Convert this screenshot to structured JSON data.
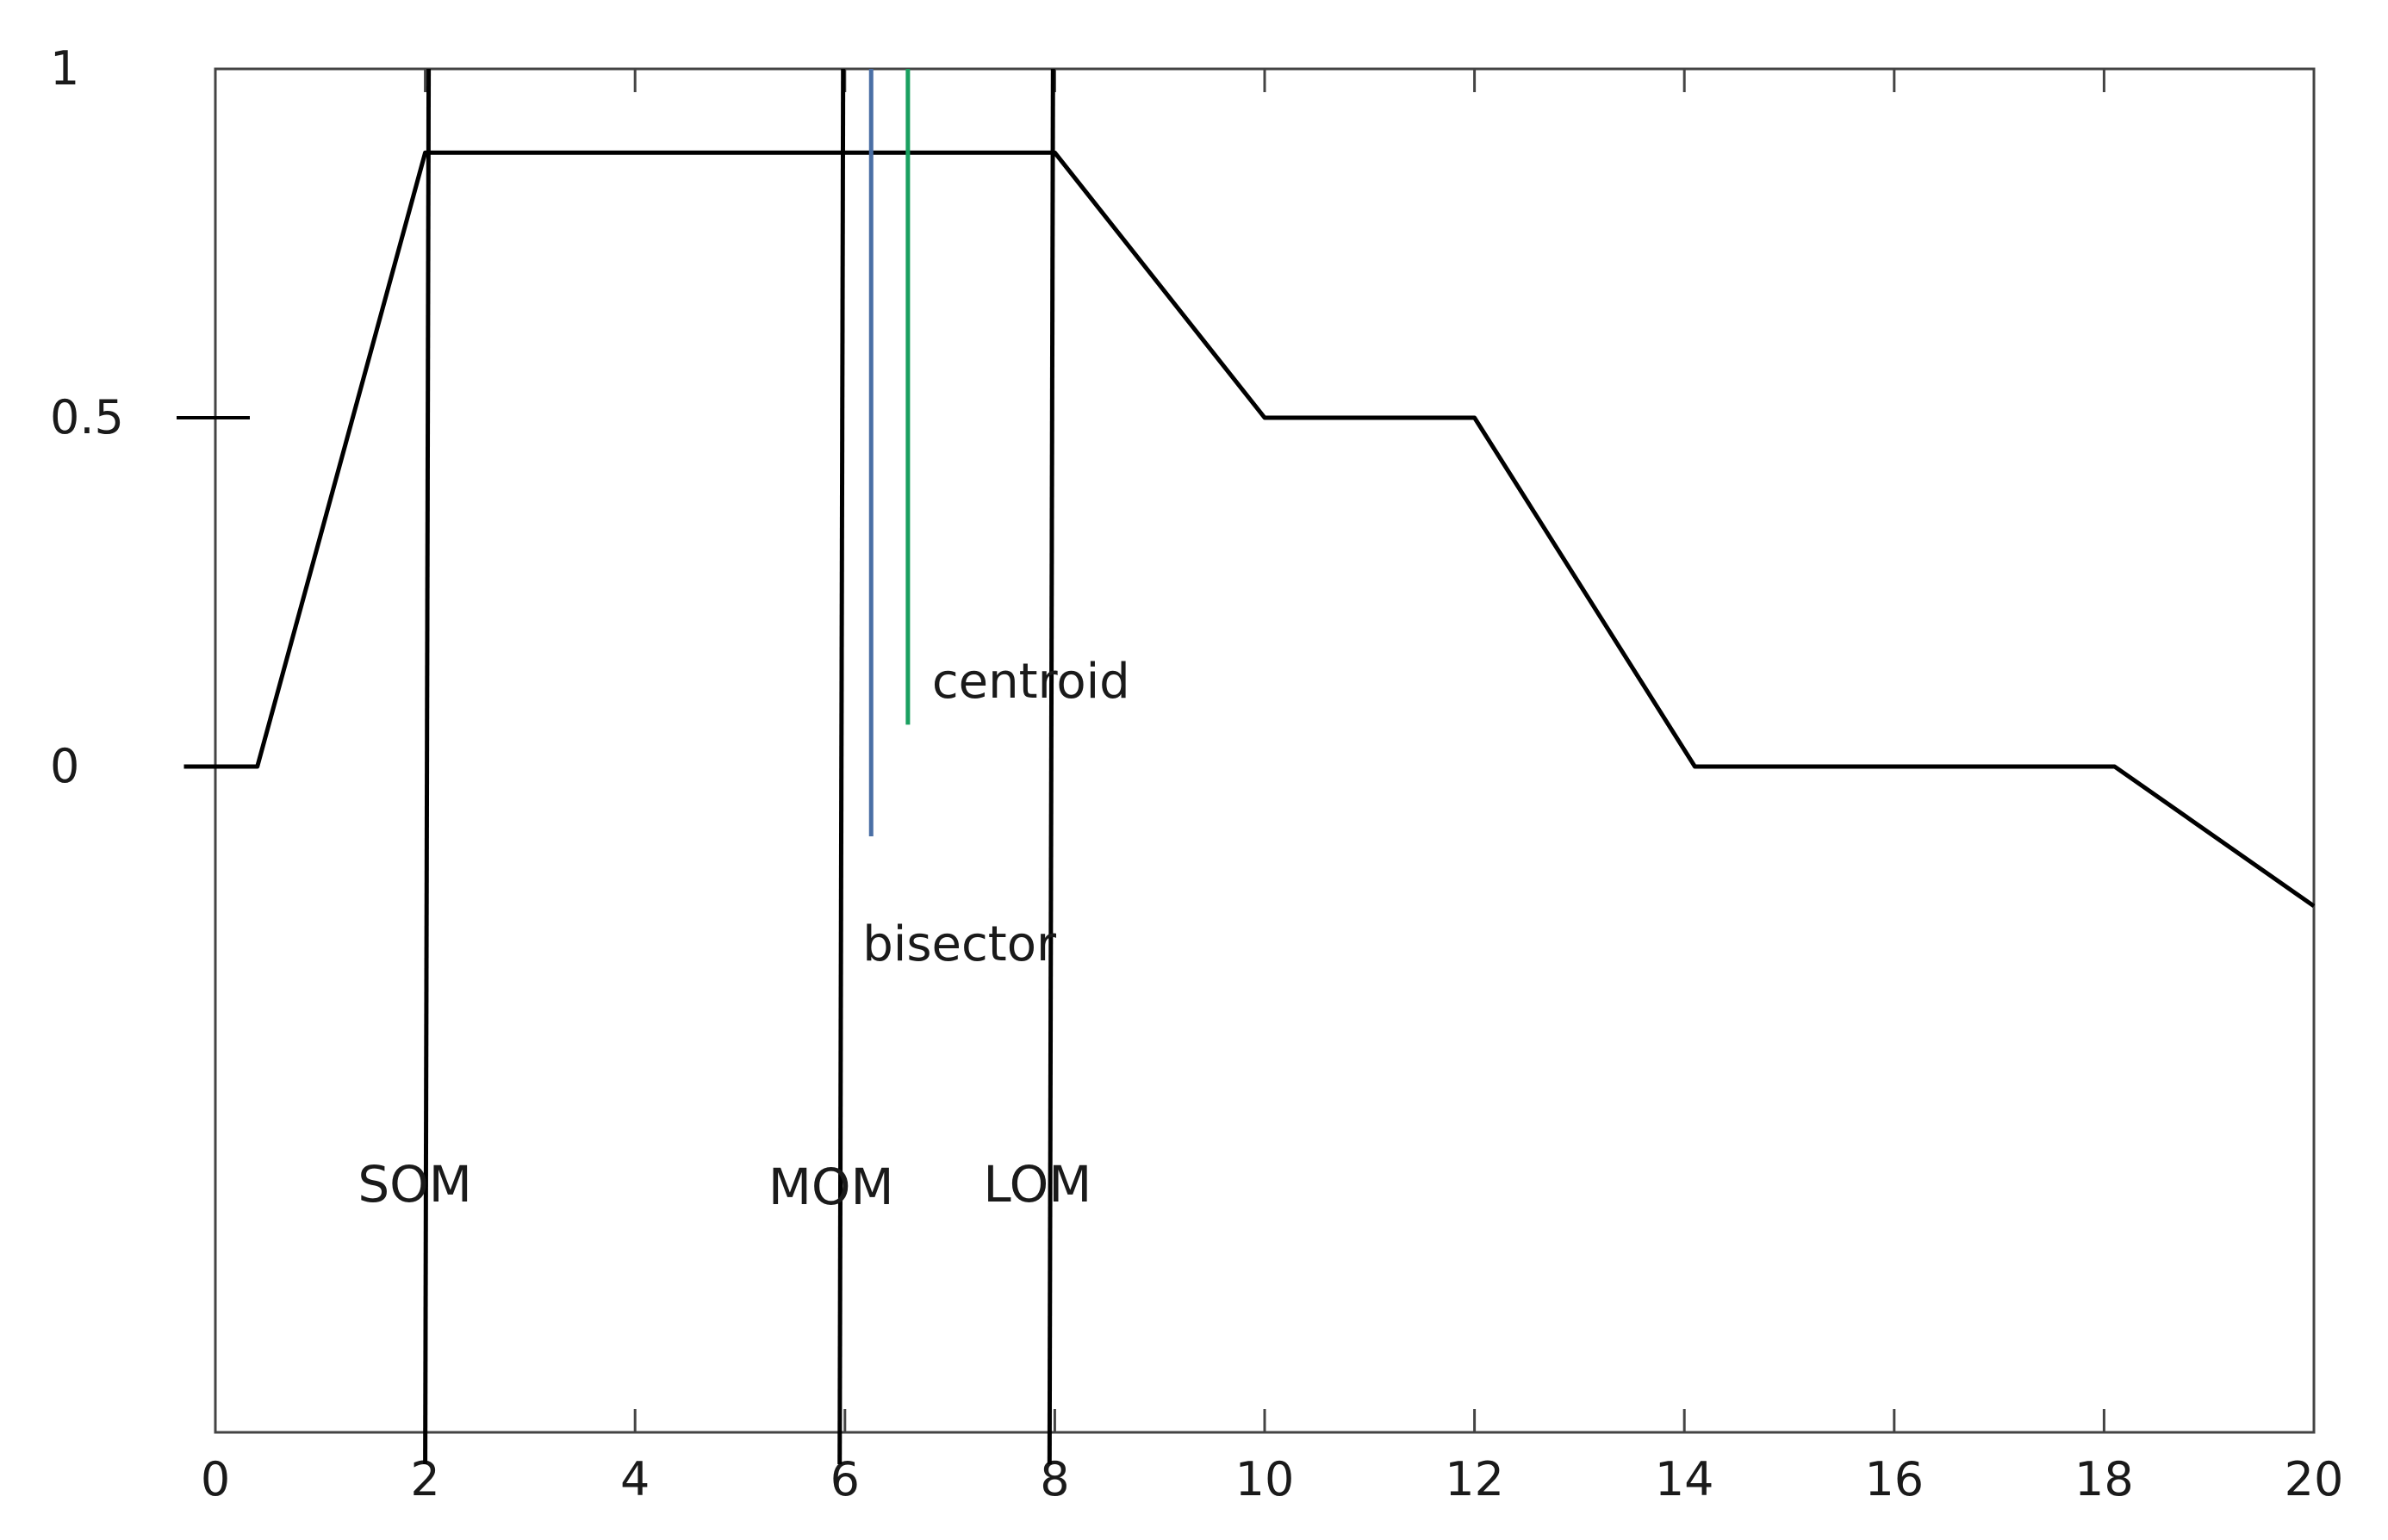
{
  "chart_data": {
    "type": "line",
    "x_ticks": [
      "0",
      "2",
      "4",
      "6",
      "8",
      "10",
      "12",
      "14",
      "16",
      "18",
      "20"
    ],
    "y_ticks": [
      "0",
      "0.5",
      "1"
    ],
    "xlim": [
      0,
      20
    ],
    "ylim": [
      -1.8,
      1
    ],
    "grid": false,
    "series": [
      {
        "color": "#000000",
        "points": [
          [
            -0.3,
            0
          ],
          [
            0.4,
            0
          ],
          [
            2.0,
            0.88
          ],
          [
            8.0,
            0.88
          ],
          [
            10.0,
            0.5
          ],
          [
            12.0,
            0.5
          ],
          [
            14.1,
            0
          ],
          [
            18.1,
            0
          ],
          [
            20.0,
            -0.2
          ]
        ]
      }
    ],
    "markers": [
      {
        "label": "SOM",
        "x": 2.0,
        "y_top": 1.0,
        "y_bottom": -1.0,
        "color": "#000000"
      },
      {
        "label": "MOM",
        "x": 5.95,
        "y_top": 1.0,
        "y_bottom": -1.0,
        "color": "#000000"
      },
      {
        "label": "LOM",
        "x": 7.95,
        "y_top": 1.0,
        "y_bottom": -1.0,
        "color": "#000000"
      },
      {
        "label": "bisector",
        "x": 6.25,
        "y_top": 1.0,
        "y_bottom": -0.1,
        "color": "#4a6fa5"
      },
      {
        "label": "centroid",
        "x": 6.6,
        "y_top": 1.0,
        "y_bottom": 0.06,
        "color": "#1aa060"
      }
    ]
  }
}
